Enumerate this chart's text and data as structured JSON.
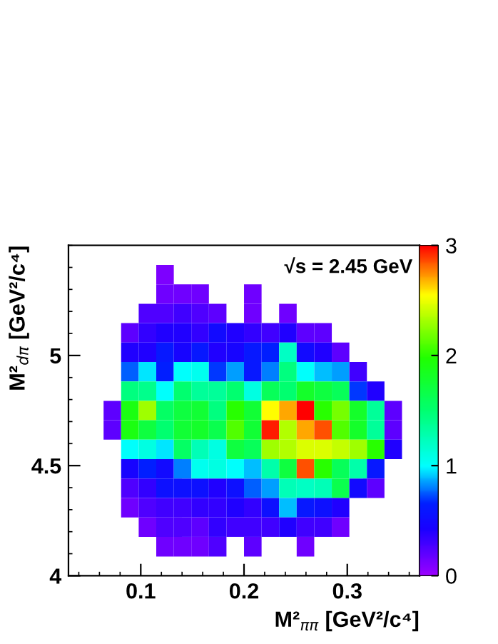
{
  "chart_data": {
    "type": "heatmap",
    "xlabel": "M²$_{ππ}$ [GeV²/c⁴]",
    "ylabel": "M²$_{dπ}$ [GeV²/c⁴]",
    "annotations": [
      "√s = 2.45 GeV"
    ],
    "x": [
      0.0725,
      0.0895,
      0.1065,
      0.1235,
      0.1405,
      0.1575,
      0.1745,
      0.1915,
      0.2085,
      0.2255,
      0.2425,
      0.2595,
      0.2765,
      0.2935,
      0.3105,
      0.3275,
      0.3445
    ],
    "y": [
      5.367,
      5.279,
      5.191,
      5.103,
      5.015,
      4.926,
      4.838,
      4.75,
      4.662,
      4.574,
      4.485,
      4.397,
      4.309,
      4.221,
      4.132
    ],
    "xlim": [
      0.03,
      0.37
    ],
    "xticks": [
      0.1,
      0.2,
      0.3
    ],
    "ylim": [
      4,
      5.5
    ],
    "yticks": [
      4,
      4.5,
      5
    ],
    "clim": [
      0,
      3
    ],
    "cticks": [
      0,
      1,
      2,
      3
    ],
    "cells": [
      [
        null,
        null,
        null,
        0.1,
        null,
        null,
        null,
        null,
        null,
        null,
        null,
        null,
        null,
        null,
        null,
        null,
        null
      ],
      [
        null,
        null,
        null,
        0.15,
        0.15,
        0.15,
        null,
        null,
        0.15,
        null,
        null,
        null,
        null,
        null,
        null,
        null,
        null
      ],
      [
        null,
        null,
        0.25,
        0.25,
        0.3,
        0.25,
        0.2,
        null,
        0.15,
        null,
        0.15,
        null,
        null,
        null,
        null,
        null,
        null
      ],
      [
        null,
        0.2,
        0.35,
        0.4,
        0.4,
        0.35,
        0.5,
        0.4,
        0.35,
        0.3,
        0.4,
        0.2,
        0.2,
        null,
        null,
        null,
        null
      ],
      [
        null,
        0.4,
        0.4,
        0.6,
        0.45,
        0.6,
        0.4,
        0.45,
        0.6,
        0.65,
        1.2,
        0.5,
        0.4,
        0.2,
        null,
        null,
        null
      ],
      [
        null,
        0.75,
        0.95,
        0.65,
        1.0,
        1.05,
        0.7,
        0.85,
        0.6,
        0.8,
        1.45,
        1.0,
        0.9,
        0.85,
        0.3,
        null,
        null
      ],
      [
        null,
        1.45,
        1.4,
        1.0,
        1.5,
        1.35,
        1.35,
        1.5,
        1.1,
        1.6,
        1.5,
        1.8,
        1.7,
        1.6,
        0.7,
        0.4,
        null
      ],
      [
        0.2,
        1.9,
        2.3,
        1.55,
        1.7,
        1.75,
        1.45,
        2.0,
        1.75,
        2.55,
        2.7,
        3.0,
        2.0,
        2.2,
        1.8,
        1.35,
        0.2
      ],
      [
        0.2,
        1.9,
        1.7,
        1.5,
        1.75,
        1.8,
        1.65,
        2.1,
        1.75,
        2.95,
        2.35,
        2.7,
        2.85,
        2.1,
        1.8,
        1.35,
        0.2
      ],
      [
        null,
        1.0,
        1.1,
        0.95,
        1.55,
        1.25,
        1.1,
        1.7,
        1.6,
        2.3,
        2.35,
        2.45,
        2.45,
        2.4,
        2.3,
        2.0,
        0.4
      ],
      [
        null,
        0.45,
        0.65,
        0.5,
        0.8,
        1.05,
        1.1,
        1.0,
        0.9,
        1.3,
        1.7,
        2.85,
        2.0,
        1.6,
        1.3,
        0.6,
        null
      ],
      [
        null,
        0.25,
        0.35,
        0.55,
        0.55,
        0.55,
        0.4,
        0.55,
        0.75,
        0.85,
        1.25,
        1.2,
        1.25,
        1.65,
        0.5,
        0.2,
        null
      ],
      [
        null,
        0.15,
        0.25,
        0.3,
        0.3,
        0.35,
        0.35,
        0.4,
        0.35,
        0.55,
        0.9,
        0.6,
        0.55,
        0.4,
        null,
        null,
        null
      ],
      [
        null,
        null,
        0.15,
        0.25,
        0.25,
        0.2,
        0.35,
        0.3,
        0.3,
        0.3,
        0.4,
        0.3,
        0.3,
        0.15,
        null,
        null,
        null
      ],
      [
        null,
        null,
        null,
        0.15,
        0.15,
        0.15,
        0.25,
        null,
        0.2,
        null,
        null,
        0.15,
        null,
        null,
        null,
        null,
        null
      ]
    ]
  }
}
